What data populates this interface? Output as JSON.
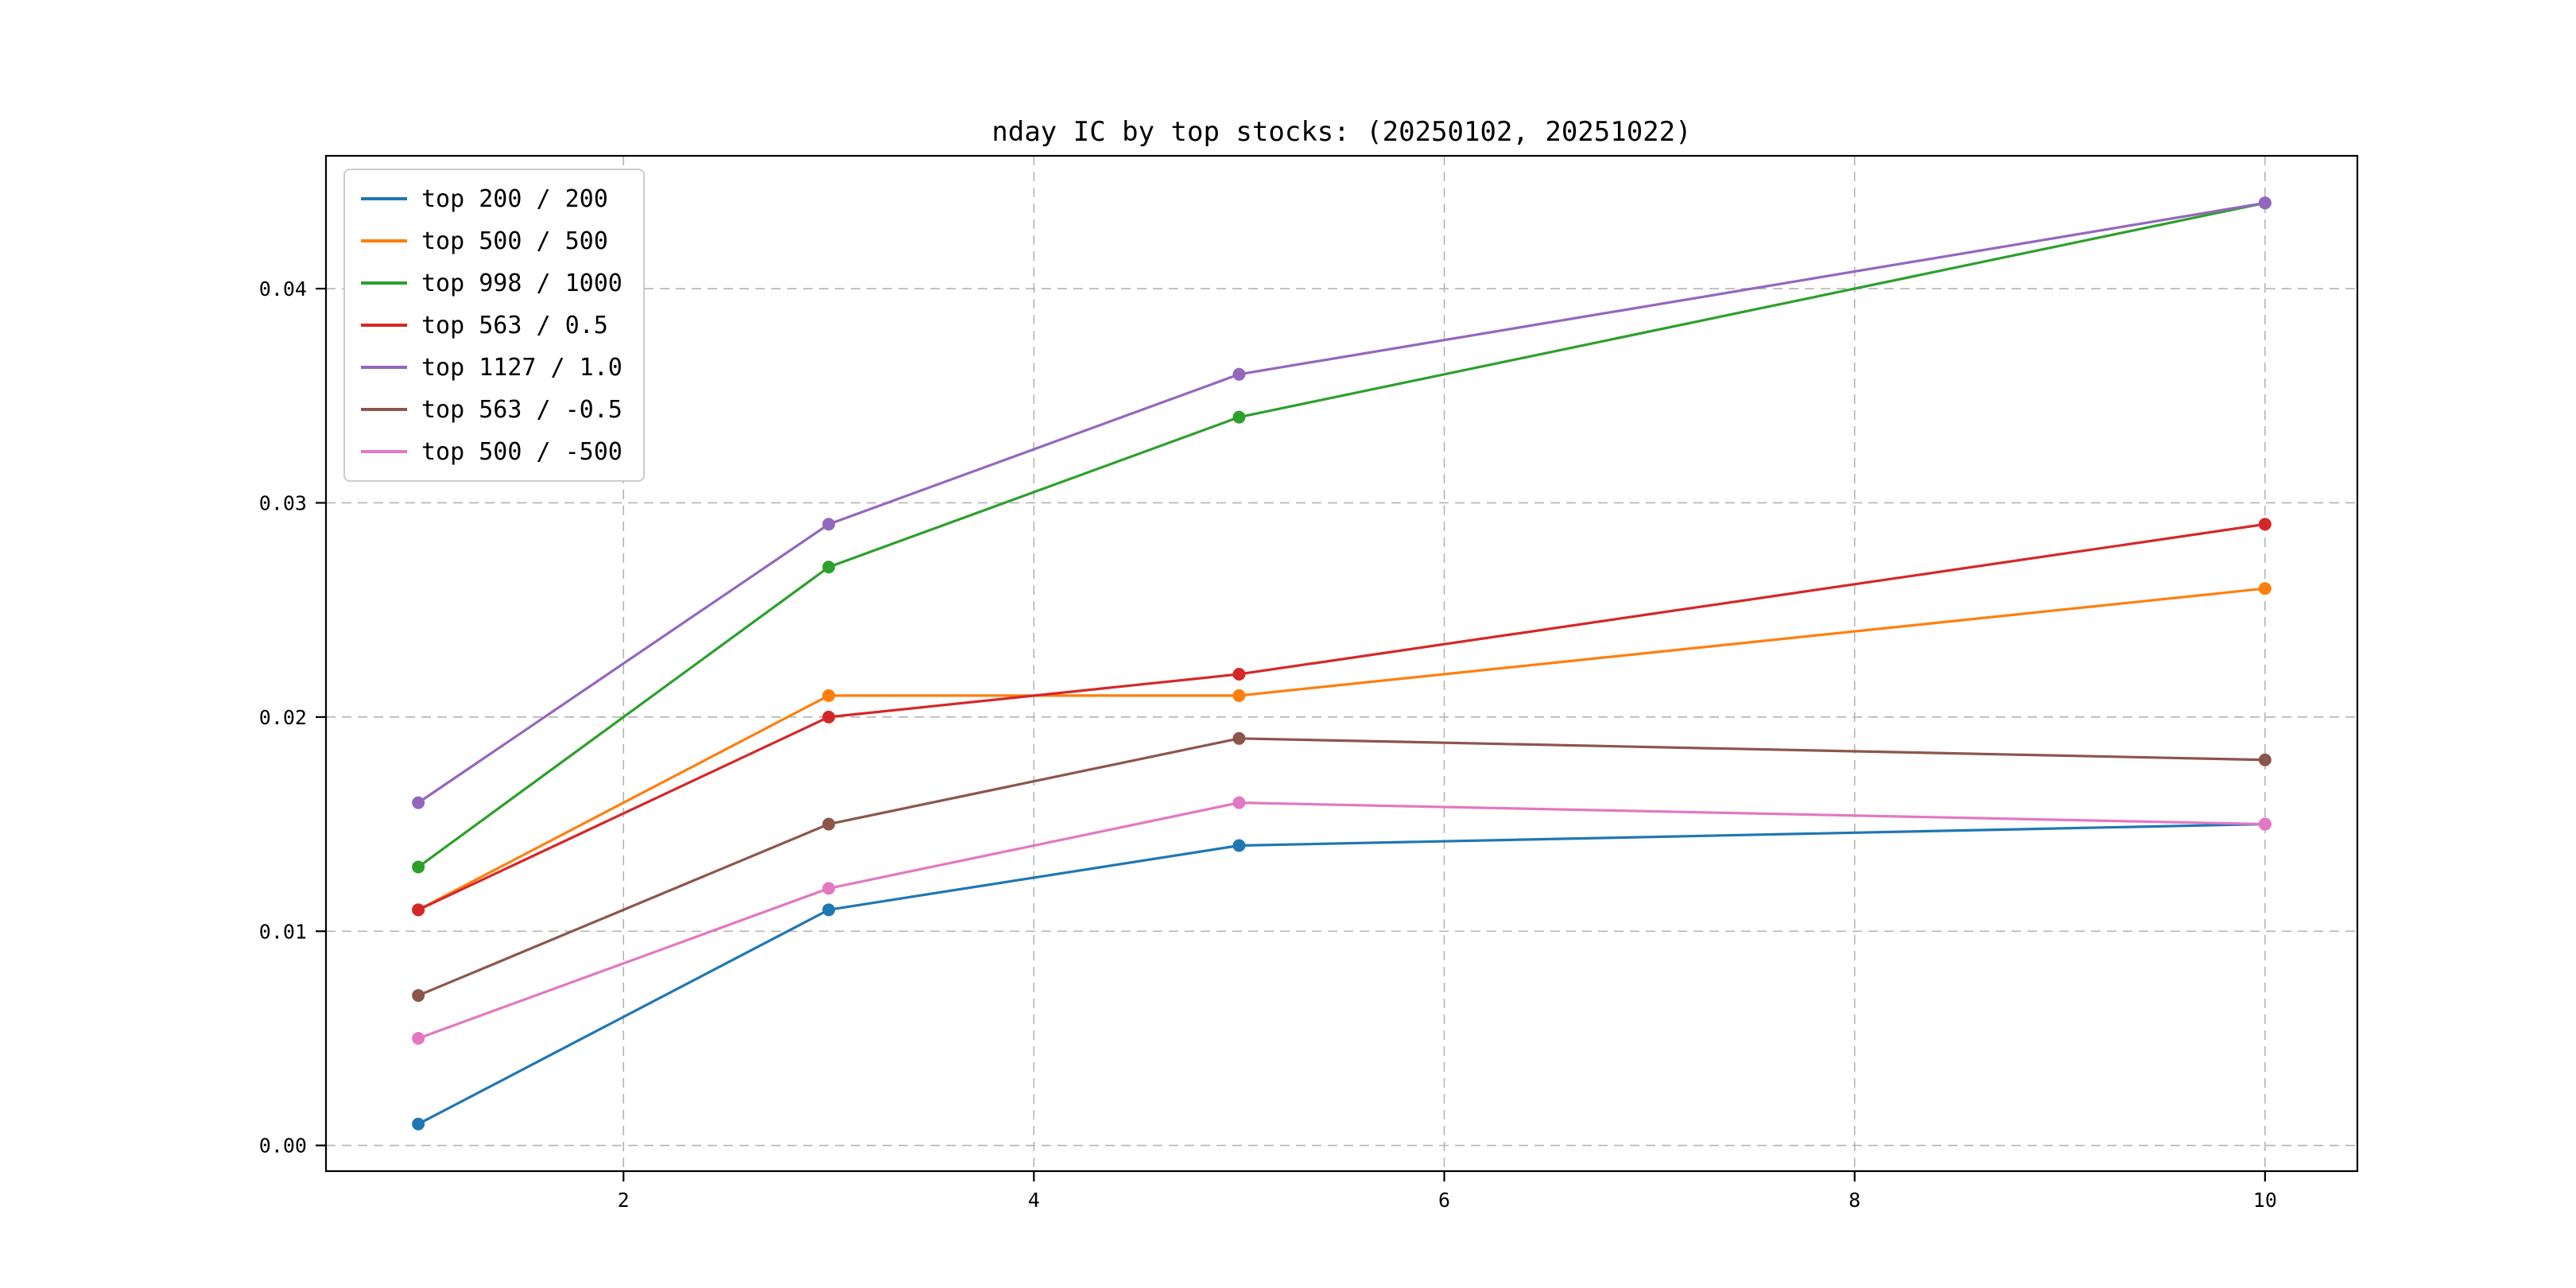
{
  "chart_data": {
    "type": "line",
    "title": "nday IC by top stocks: (20250102, 20251022)",
    "x": [
      1,
      3,
      5,
      10
    ],
    "x_tick_labels": [
      "2",
      "4",
      "6",
      "8",
      "10"
    ],
    "x_ticks": [
      2,
      4,
      6,
      8,
      10
    ],
    "y_ticks": [
      0.0,
      0.01,
      0.02,
      0.03,
      0.04
    ],
    "y_tick_labels": [
      "0.00",
      "0.01",
      "0.02",
      "0.03",
      "0.04"
    ],
    "xlim": [
      0.55,
      10.45
    ],
    "ylim": [
      -0.0012,
      0.0462
    ],
    "grid": true,
    "grid_style": "dashed",
    "legend_position": "upper left",
    "grid_color": "#b4b4b4",
    "axis_color": "#000000",
    "background_color": "#ffffff",
    "series": [
      {
        "name": "top 200 / 200",
        "color": "#1f77b4",
        "values": [
          0.001,
          0.011,
          0.014,
          0.015
        ]
      },
      {
        "name": "top 500 / 500",
        "color": "#ff7f0e",
        "values": [
          0.011,
          0.021,
          0.021,
          0.026
        ]
      },
      {
        "name": "top 998 / 1000",
        "color": "#2ca02c",
        "values": [
          0.013,
          0.027,
          0.034,
          0.044
        ]
      },
      {
        "name": "top 563 / 0.5",
        "color": "#d62728",
        "values": [
          0.011,
          0.02,
          0.022,
          0.029
        ]
      },
      {
        "name": "top 1127 / 1.0",
        "color": "#9467bd",
        "values": [
          0.016,
          0.029,
          0.036,
          0.044
        ]
      },
      {
        "name": "top 563 / -0.5",
        "color": "#8c564b",
        "values": [
          0.007,
          0.015,
          0.019,
          0.018
        ]
      },
      {
        "name": "top 500 / -500",
        "color": "#e377c2",
        "values": [
          0.005,
          0.012,
          0.016,
          0.015
        ]
      }
    ]
  }
}
